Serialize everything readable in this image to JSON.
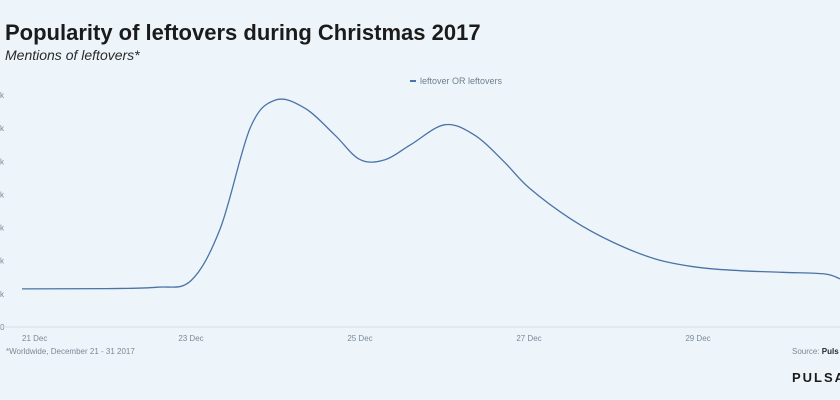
{
  "header": {
    "title": "Popularity of leftovers during Christmas 2017",
    "subtitle": "Mentions of leftovers*"
  },
  "footer": {
    "footnote": "*Worldwide, December 21 - 31 2017",
    "source_prefix": "Source: ",
    "source_name": "Puls",
    "brand": "PULSA"
  },
  "chart_data": {
    "type": "line",
    "title": "Popularity of leftovers during Christmas 2017",
    "subtitle": "Mentions of leftovers*",
    "legend": "top-center",
    "grid": false,
    "x_ticks": [
      "21 Dec",
      "23 Dec",
      "25 Dec",
      "27 Dec",
      "29 Dec"
    ],
    "y_ticks": [
      "k",
      "k",
      "k",
      "k",
      "k",
      "k",
      "k",
      "0"
    ],
    "series": [
      {
        "name": "leftover OR leftovers",
        "color": "#4a73a8",
        "x": [
          21,
          22,
          22.6,
          23,
          23.35,
          23.7,
          24,
          24.35,
          24.7,
          25,
          25.3,
          25.6,
          26,
          26.35,
          26.7,
          27,
          27.5,
          28,
          28.5,
          29,
          29.5,
          30,
          30.5,
          31
        ],
        "y": [
          1.15,
          1.16,
          1.2,
          1.4,
          3.0,
          6.0,
          6.85,
          6.6,
          5.8,
          5.05,
          5.05,
          5.5,
          6.1,
          5.8,
          5.0,
          4.2,
          3.25,
          2.55,
          2.05,
          1.8,
          1.7,
          1.65,
          1.6,
          1.45
        ]
      }
    ]
  }
}
